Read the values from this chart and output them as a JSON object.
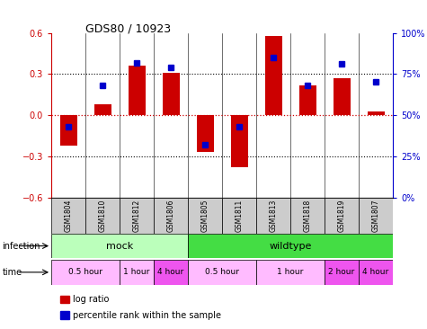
{
  "title": "GDS80 / 10923",
  "samples": [
    "GSM1804",
    "GSM1810",
    "GSM1812",
    "GSM1806",
    "GSM1805",
    "GSM1811",
    "GSM1813",
    "GSM1818",
    "GSM1819",
    "GSM1807"
  ],
  "log_ratio": [
    -0.22,
    0.08,
    0.36,
    0.31,
    -0.27,
    -0.38,
    0.58,
    0.22,
    0.27,
    0.03
  ],
  "percentile": [
    43,
    68,
    82,
    79,
    32,
    43,
    85,
    68,
    81,
    70
  ],
  "ylim": [
    -0.6,
    0.6
  ],
  "y2lim": [
    0,
    100
  ],
  "yticks": [
    -0.6,
    -0.3,
    0.0,
    0.3,
    0.6
  ],
  "y2ticks": [
    0,
    25,
    50,
    75,
    100
  ],
  "y2ticklabels": [
    "0%",
    "25%",
    "50%",
    "75%",
    "100%"
  ],
  "hlines_dotted": [
    -0.3,
    0.3
  ],
  "bar_color": "#cc0000",
  "dot_color": "#0000cc",
  "infection_groups": [
    {
      "label": "mock",
      "start": 0,
      "end": 4,
      "color": "#bbffbb"
    },
    {
      "label": "wildtype",
      "start": 4,
      "end": 10,
      "color": "#44dd44"
    }
  ],
  "time_groups": [
    {
      "label": "0.5 hour",
      "start": 0,
      "end": 2,
      "color": "#ffbbff"
    },
    {
      "label": "1 hour",
      "start": 2,
      "end": 3,
      "color": "#ffbbff"
    },
    {
      "label": "4 hour",
      "start": 3,
      "end": 4,
      "color": "#ee55ee"
    },
    {
      "label": "0.5 hour",
      "start": 4,
      "end": 6,
      "color": "#ffbbff"
    },
    {
      "label": "1 hour",
      "start": 6,
      "end": 8,
      "color": "#ffbbff"
    },
    {
      "label": "2 hour",
      "start": 8,
      "end": 9,
      "color": "#ee55ee"
    },
    {
      "label": "4 hour",
      "start": 9,
      "end": 10,
      "color": "#ee55ee"
    }
  ],
  "bar_width": 0.5,
  "legend_items": [
    "log ratio",
    "percentile rank within the sample"
  ],
  "legend_colors": [
    "#cc0000",
    "#0000cc"
  ]
}
